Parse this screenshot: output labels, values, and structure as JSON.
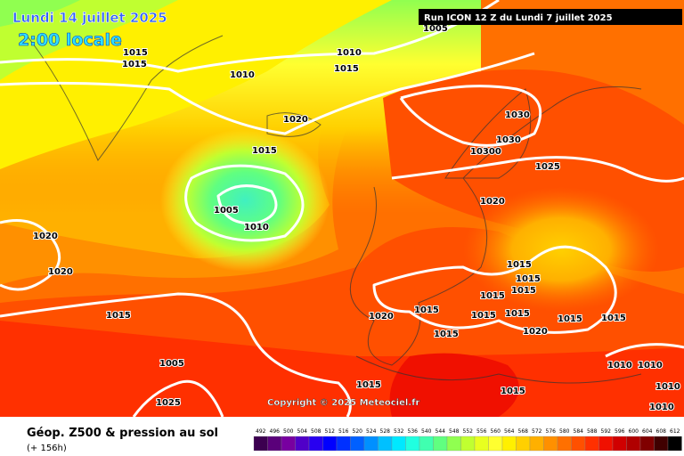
{
  "header": {
    "date": "Lundi 14 juillet 2025",
    "time": "2:00 locale",
    "run": "Run ICON 12 Z du Lundi 7 juillet 2025"
  },
  "copyright": "Copyright © 2025 Meteociel.fr",
  "footer": {
    "title": "Géop. Z500 & pression au sol",
    "lead": "(+ 156h)"
  },
  "scale": {
    "labels": [
      492,
      496,
      500,
      504,
      508,
      512,
      516,
      520,
      524,
      528,
      532,
      536,
      540,
      544,
      548,
      552,
      556,
      560,
      564,
      568,
      572,
      576,
      580,
      584,
      588,
      592,
      596,
      600,
      604,
      608,
      612
    ],
    "colors": [
      "#3c0050",
      "#5a007a",
      "#7800a0",
      "#5000c8",
      "#2800f0",
      "#0000ff",
      "#0030ff",
      "#0060ff",
      "#0090ff",
      "#00c0ff",
      "#00e8ff",
      "#20ffe0",
      "#40ffb0",
      "#60ff80",
      "#90ff50",
      "#c0ff30",
      "#e8ff20",
      "#ffff30",
      "#fff000",
      "#ffd000",
      "#ffb000",
      "#ff9000",
      "#ff7000",
      "#ff5000",
      "#ff3000",
      "#f01000",
      "#d00000",
      "#b00000",
      "#800000",
      "#400000",
      "#000000"
    ]
  },
  "isobar_labels": [
    1005,
    1015,
    1015,
    1010,
    1015,
    1010,
    1020,
    1030,
    1015,
    1030,
    10300,
    1025,
    1005,
    1010,
    1020,
    1020,
    1020,
    1015,
    1015,
    1015,
    1015,
    1015,
    1020,
    1015,
    1015,
    1015,
    1015,
    1015,
    1015,
    1020,
    1005,
    1010,
    1010,
    1015,
    1015,
    1025,
    1010,
    1010
  ]
}
